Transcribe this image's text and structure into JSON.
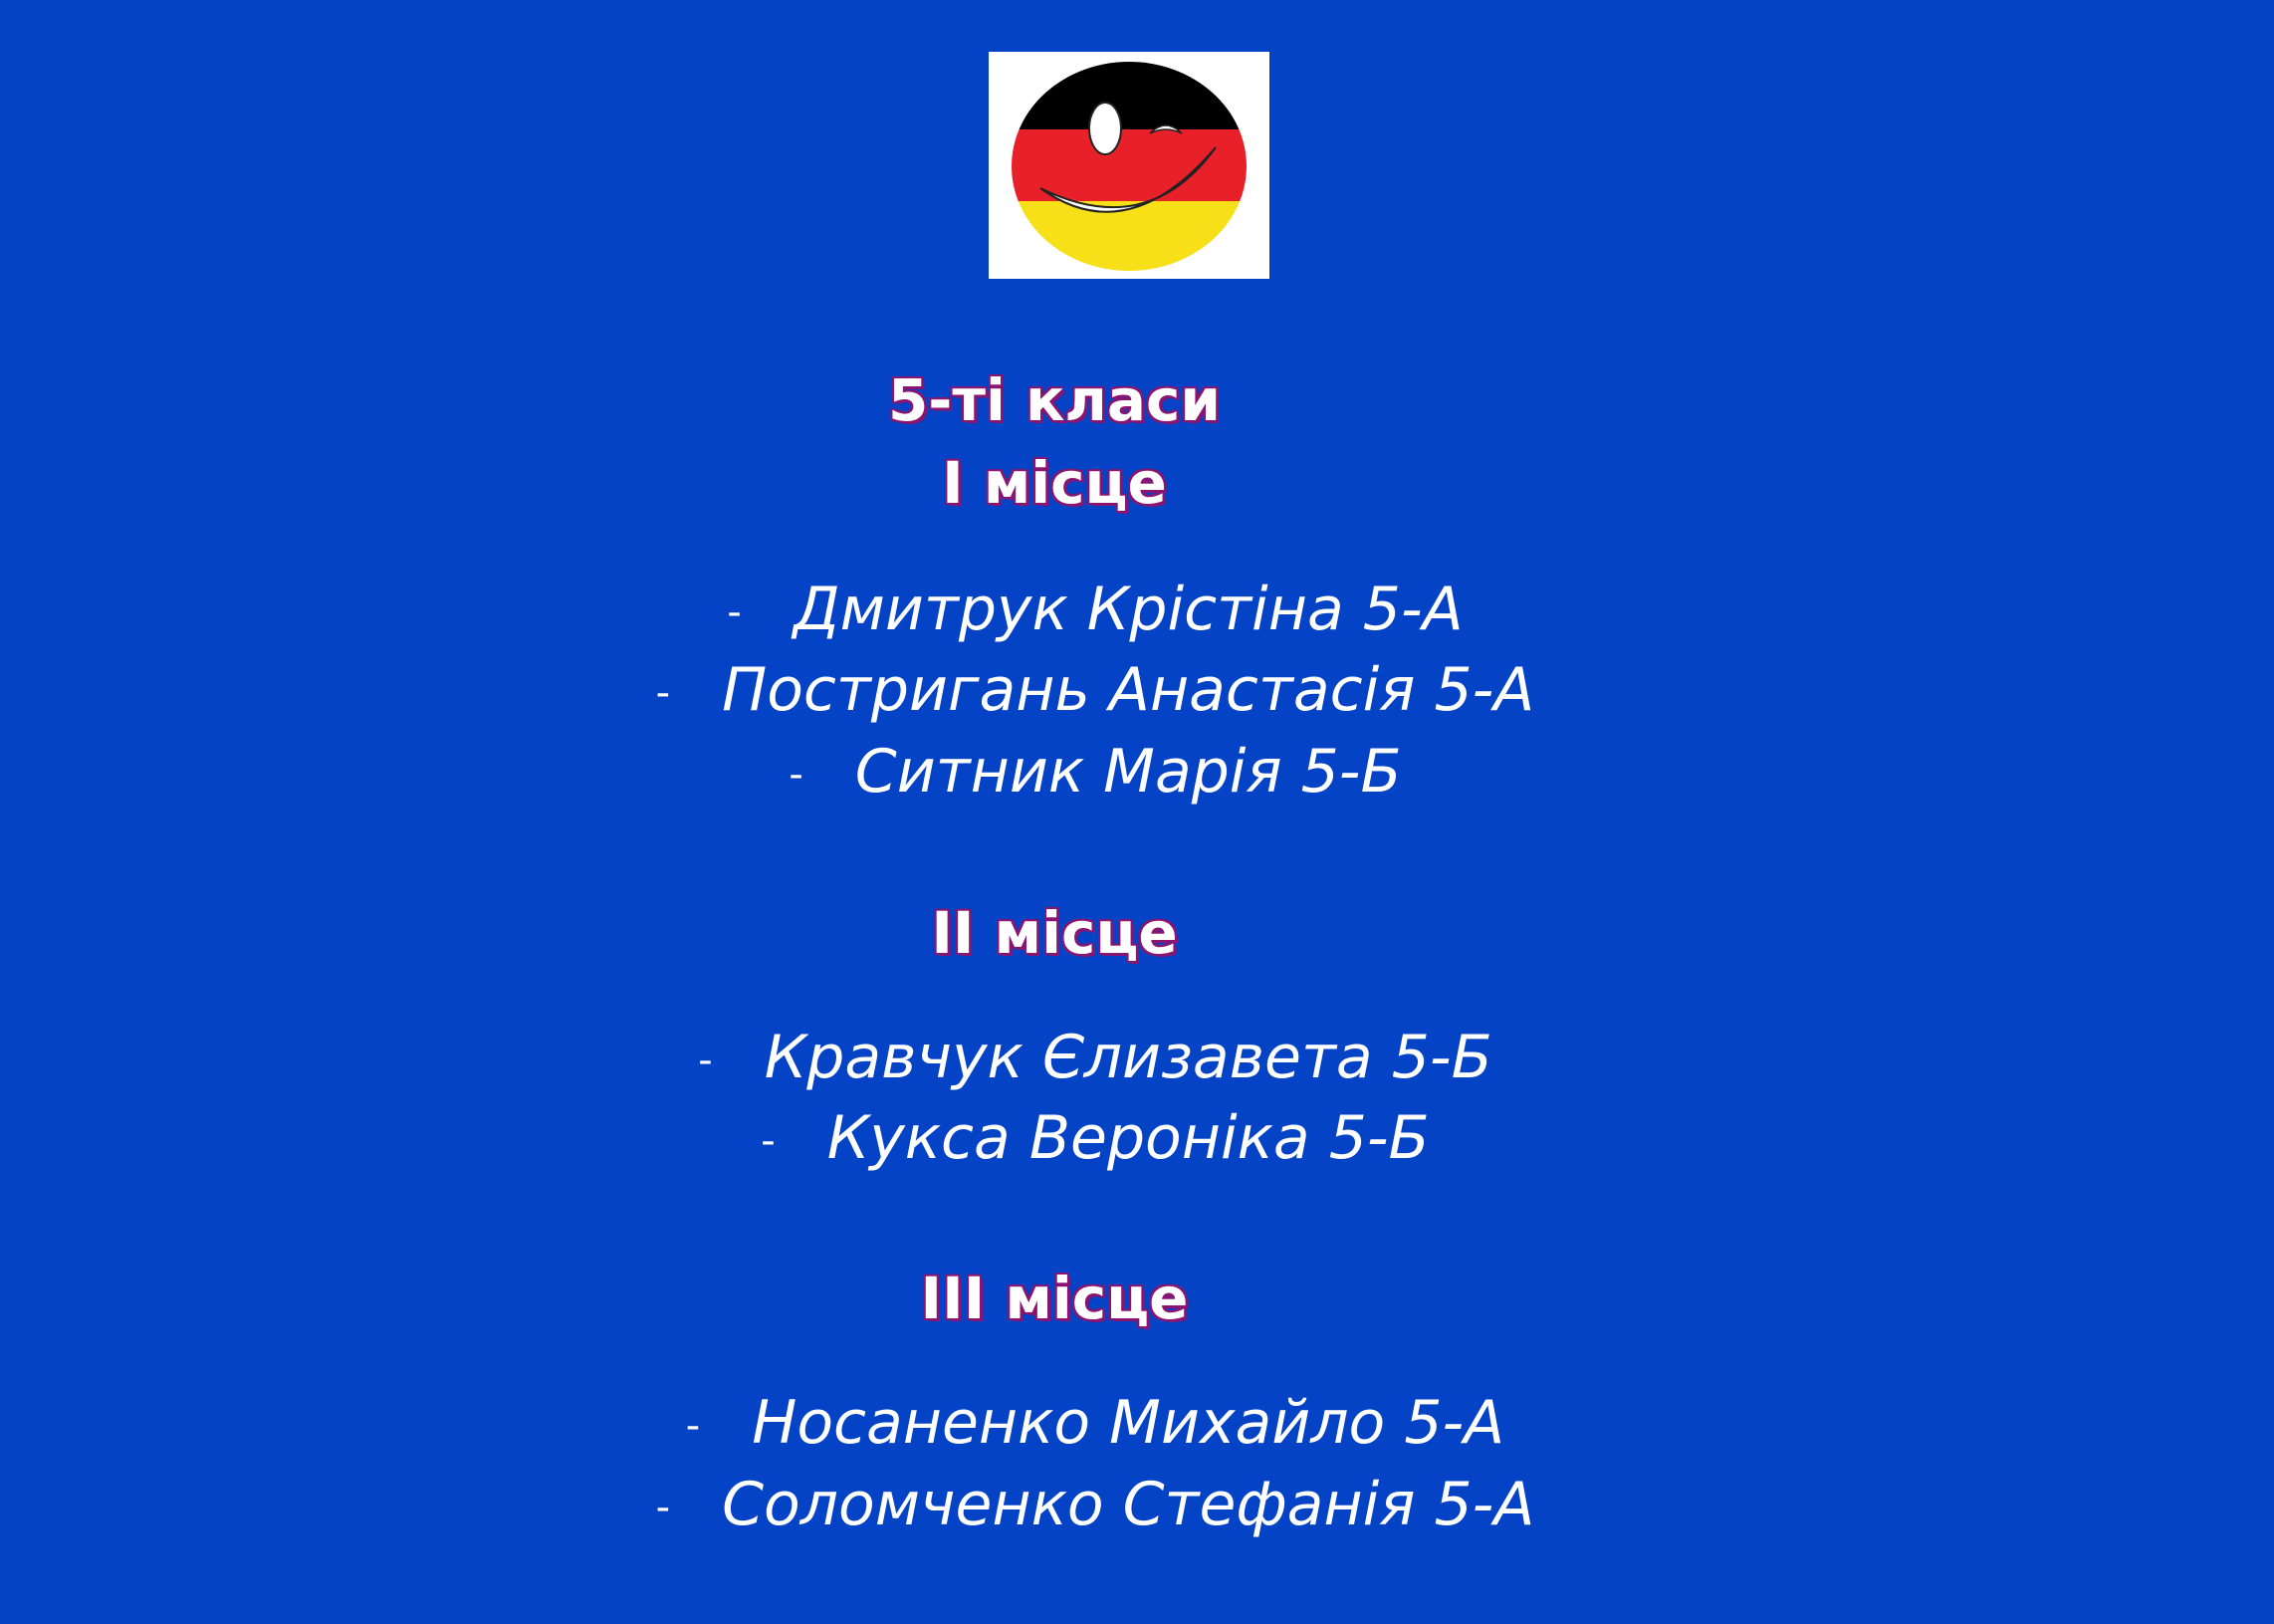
{
  "logo": {
    "name": "german-flag-smiley-logo",
    "colors": [
      "#000000",
      "#e8202a",
      "#f7e017"
    ]
  },
  "sections": [
    {
      "title": "5-ті класи"
    },
    {
      "title": "I місце",
      "names": [
        "Дмитрук Крістіна 5-А",
        "Постригань Анастасія 5-А",
        "Ситник Марія 5-Б"
      ]
    },
    {
      "title": "II місце",
      "names": [
        "Кравчук Єлизавета 5-Б",
        "Кукса Вероніка 5-Б"
      ]
    },
    {
      "title": "III місце",
      "names": [
        "Носаненко Михайло 5-А",
        "Соломченко Стефанія 5-А"
      ]
    }
  ],
  "bullet": "-"
}
